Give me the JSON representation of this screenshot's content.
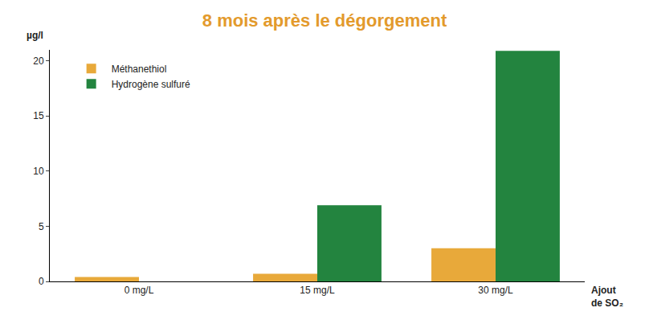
{
  "chart_data": {
    "type": "bar",
    "title": "8 mois après le dégorgement",
    "y_label": "µg/l",
    "x_label": "Ajout de SO₂",
    "categories": [
      "0 mg/L",
      "15 mg/L",
      "30 mg/L"
    ],
    "series": [
      {
        "name": "Méthanethiol",
        "color": "#e8a93a",
        "values": [
          0.4,
          0.7,
          3.0
        ]
      },
      {
        "name": "Hydrogène sulfuré",
        "color": "#23843f",
        "values": [
          0,
          6.9,
          20.9
        ]
      }
    ],
    "ylim": [
      0,
      21
    ],
    "yticks": [
      0,
      5,
      10,
      15,
      20
    ],
    "grid": false,
    "legend": "upper left"
  }
}
